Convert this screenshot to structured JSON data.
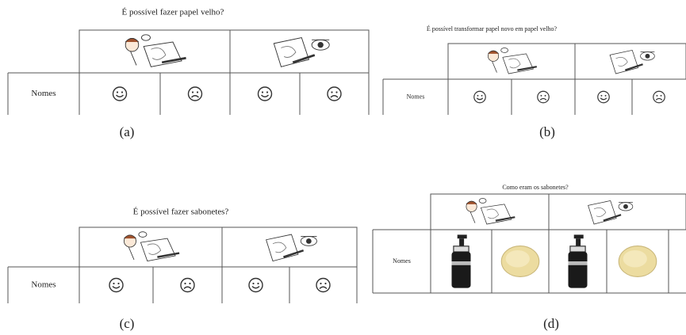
{
  "panels": [
    {
      "title": "É possível fazer papel velho?",
      "row_label": "Nomes",
      "caption": "(a)"
    },
    {
      "title": "É possível transformar papel novo em papel velho?",
      "row_label": "Nomes",
      "caption": "(b)"
    },
    {
      "title": "É possível fazer sabonetes?",
      "row_label": "Nomes",
      "caption": "(c)"
    },
    {
      "title": "Como eram os sabonetes?",
      "row_label": "Nomes",
      "caption": "(d)"
    }
  ]
}
